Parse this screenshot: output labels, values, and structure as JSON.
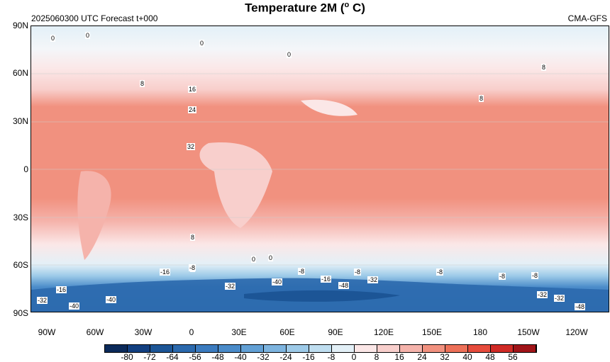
{
  "header": {
    "title": "Temperature  2M (",
    "title_unit": "o",
    "title_end": " C)",
    "left_label": "2025060300 UTC Forecast t+000",
    "right_label": "CMA-GFS"
  },
  "axes": {
    "lat_labels": [
      "90N",
      "60N",
      "30N",
      "0",
      "30S",
      "60S",
      "90S"
    ],
    "lon_labels": [
      "90W",
      "60W",
      "30W",
      "0",
      "30E",
      "60E",
      "90E",
      "120E",
      "150E",
      "180",
      "150W",
      "120W"
    ]
  },
  "colorbar": {
    "labels": [
      "-80",
      "-72",
      "-64",
      "-56",
      "-48",
      "-40",
      "-32",
      "-24",
      "-16",
      "-8",
      "0",
      "8",
      "16",
      "24",
      "32",
      "40",
      "48",
      "56"
    ],
    "colors": [
      "#0b2a5a",
      "#123f80",
      "#1c5596",
      "#2b69ad",
      "#3b7bbf",
      "#4a8bc9",
      "#62a0d5",
      "#7db4df",
      "#9dcae8",
      "#bfdef0",
      "#e3f0f7",
      "#fbe7e7",
      "#f8cfcc",
      "#f5b3ab",
      "#f1917f",
      "#ed7058",
      "#e64b3c",
      "#d02a25",
      "#a01418"
    ]
  },
  "contour_labels": [
    {
      "text": "0"
    },
    {
      "text": "0"
    },
    {
      "text": "0"
    },
    {
      "text": "0"
    },
    {
      "text": "8"
    },
    {
      "text": "8"
    },
    {
      "text": "8"
    },
    {
      "text": "8"
    },
    {
      "text": "16"
    },
    {
      "text": "24"
    },
    {
      "text": "32"
    },
    {
      "text": "8"
    },
    {
      "text": "0"
    },
    {
      "text": "0"
    },
    {
      "text": "-16"
    },
    {
      "text": "-8"
    },
    {
      "text": "-8"
    },
    {
      "text": "-16"
    },
    {
      "text": "-8"
    },
    {
      "text": "-8"
    },
    {
      "text": "-8"
    },
    {
      "text": "-8"
    },
    {
      "text": "-32"
    },
    {
      "text": "-40"
    },
    {
      "text": "-40"
    },
    {
      "text": "-48"
    },
    {
      "text": "-32"
    },
    {
      "text": "-16"
    },
    {
      "text": "-32"
    },
    {
      "text": "-40"
    },
    {
      "text": "-32"
    },
    {
      "text": "-32"
    },
    {
      "text": "-48"
    }
  ]
}
